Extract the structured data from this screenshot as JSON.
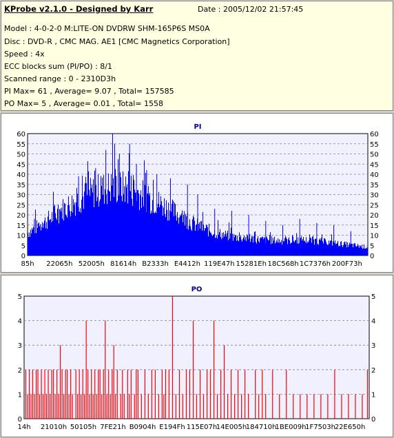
{
  "header": {
    "title": "KProbe v2.1.0 - Designed by Karr",
    "date": "Date : 2005/12/02 21:57:45",
    "lines": [
      "Model : 4-0-2-0 M:LITE-ON DVDRW SHM-165P6S MS0A",
      "Disc : DVD-R , CMC MAG. AE1 [CMC Magnetics Corporation]",
      "Speed : 4x",
      "ECC blocks sum (PI/PO) : 8/1",
      "Scanned range : 0 - 2310D3h",
      "PI Max= 61 , Average= 9.07 , Total= 157585",
      "PO Max= 5 , Average= 0.01 , Total= 1558"
    ]
  },
  "colors": {
    "pi": "#0000ff",
    "po": "#ff0000",
    "grid": "#808080",
    "plot_bg": "#f0f0ff"
  },
  "chart_data": [
    {
      "type": "bar",
      "title": "PI",
      "ylim": [
        0,
        60
      ],
      "yticks": [
        0,
        5,
        10,
        15,
        20,
        25,
        30,
        35,
        40,
        45,
        50,
        55,
        60
      ],
      "xticks": [
        "85h",
        "22065h",
        "52005h",
        "81614h",
        "B2333h",
        "E4412h",
        "119E47h",
        "15281Eh",
        "18C568h",
        "1C7376h",
        "200F73h"
      ],
      "grid": true,
      "envelope": [
        [
          0,
          11
        ],
        [
          0.05,
          16
        ],
        [
          0.1,
          22
        ],
        [
          0.15,
          27
        ],
        [
          0.2,
          31
        ],
        [
          0.25,
          33
        ],
        [
          0.3,
          32
        ],
        [
          0.35,
          28
        ],
        [
          0.4,
          24
        ],
        [
          0.45,
          19
        ],
        [
          0.5,
          14
        ],
        [
          0.55,
          11
        ],
        [
          0.6,
          9
        ],
        [
          0.65,
          8
        ],
        [
          0.7,
          7.5
        ],
        [
          0.75,
          7
        ],
        [
          0.8,
          7.5
        ],
        [
          0.85,
          7
        ],
        [
          0.9,
          6
        ],
        [
          0.95,
          5
        ],
        [
          1,
          4
        ]
      ],
      "peaks": [
        [
          0.02,
          18
        ],
        [
          0.08,
          25
        ],
        [
          0.15,
          39
        ],
        [
          0.2,
          43
        ],
        [
          0.23,
          52
        ],
        [
          0.25,
          61
        ],
        [
          0.27,
          50
        ],
        [
          0.3,
          55
        ],
        [
          0.32,
          45
        ],
        [
          0.35,
          42
        ],
        [
          0.38,
          40
        ],
        [
          0.42,
          38
        ],
        [
          0.47,
          35
        ],
        [
          0.5,
          30
        ],
        [
          0.55,
          23
        ],
        [
          0.6,
          22
        ],
        [
          0.65,
          20
        ],
        [
          0.7,
          17
        ],
        [
          0.75,
          15
        ],
        [
          0.8,
          18
        ],
        [
          0.85,
          16
        ],
        [
          0.9,
          15
        ],
        [
          0.95,
          12
        ]
      ]
    },
    {
      "type": "bar",
      "title": "PO",
      "ylim": [
        0,
        5
      ],
      "yticks": [
        0,
        1,
        2,
        3,
        4,
        5
      ],
      "xticks": [
        "14h",
        "21010h",
        "50105h",
        "7FE21h",
        "B0904h",
        "E194Fh",
        "115E07h",
        "14E005h",
        "184710h",
        "1BE009h",
        "1F7503h",
        "22E650h"
      ],
      "grid": true,
      "points": [
        [
          0.005,
          2
        ],
        [
          0.01,
          1
        ],
        [
          0.015,
          2
        ],
        [
          0.02,
          1
        ],
        [
          0.025,
          2
        ],
        [
          0.03,
          1
        ],
        [
          0.035,
          2
        ],
        [
          0.04,
          2
        ],
        [
          0.045,
          1
        ],
        [
          0.05,
          2
        ],
        [
          0.055,
          1
        ],
        [
          0.06,
          2
        ],
        [
          0.065,
          1
        ],
        [
          0.07,
          2
        ],
        [
          0.075,
          1
        ],
        [
          0.08,
          2
        ],
        [
          0.085,
          2
        ],
        [
          0.09,
          1
        ],
        [
          0.095,
          2
        ],
        [
          0.1,
          1
        ],
        [
          0.105,
          3
        ],
        [
          0.11,
          2
        ],
        [
          0.115,
          1
        ],
        [
          0.12,
          2
        ],
        [
          0.125,
          2
        ],
        [
          0.13,
          1
        ],
        [
          0.135,
          2
        ],
        [
          0.14,
          1
        ],
        [
          0.15,
          2
        ],
        [
          0.155,
          1
        ],
        [
          0.16,
          2
        ],
        [
          0.165,
          1
        ],
        [
          0.17,
          2
        ],
        [
          0.175,
          1
        ],
        [
          0.18,
          4
        ],
        [
          0.185,
          2
        ],
        [
          0.19,
          1
        ],
        [
          0.195,
          2
        ],
        [
          0.2,
          1
        ],
        [
          0.205,
          2
        ],
        [
          0.21,
          1
        ],
        [
          0.215,
          2
        ],
        [
          0.22,
          2
        ],
        [
          0.225,
          1
        ],
        [
          0.23,
          2
        ],
        [
          0.235,
          4
        ],
        [
          0.24,
          1
        ],
        [
          0.245,
          2
        ],
        [
          0.25,
          1
        ],
        [
          0.255,
          2
        ],
        [
          0.26,
          3
        ],
        [
          0.265,
          1
        ],
        [
          0.27,
          2
        ],
        [
          0.28,
          1
        ],
        [
          0.285,
          2
        ],
        [
          0.29,
          1
        ],
        [
          0.3,
          2
        ],
        [
          0.305,
          1
        ],
        [
          0.31,
          2
        ],
        [
          0.32,
          1
        ],
        [
          0.325,
          2
        ],
        [
          0.33,
          2
        ],
        [
          0.34,
          1
        ],
        [
          0.35,
          2
        ],
        [
          0.36,
          1
        ],
        [
          0.37,
          2
        ],
        [
          0.38,
          2
        ],
        [
          0.39,
          1
        ],
        [
          0.4,
          2
        ],
        [
          0.405,
          1
        ],
        [
          0.41,
          2
        ],
        [
          0.42,
          2
        ],
        [
          0.43,
          5
        ],
        [
          0.44,
          1
        ],
        [
          0.45,
          2
        ],
        [
          0.46,
          1
        ],
        [
          0.47,
          2
        ],
        [
          0.48,
          2
        ],
        [
          0.49,
          4
        ],
        [
          0.5,
          1
        ],
        [
          0.51,
          2
        ],
        [
          0.52,
          1
        ],
        [
          0.53,
          2
        ],
        [
          0.54,
          2
        ],
        [
          0.55,
          4
        ],
        [
          0.56,
          1
        ],
        [
          0.57,
          2
        ],
        [
          0.58,
          3
        ],
        [
          0.59,
          1
        ],
        [
          0.6,
          2
        ],
        [
          0.61,
          1
        ],
        [
          0.62,
          2
        ],
        [
          0.63,
          1
        ],
        [
          0.64,
          2
        ],
        [
          0.65,
          1
        ],
        [
          0.67,
          2
        ],
        [
          0.68,
          1
        ],
        [
          0.69,
          2
        ],
        [
          0.7,
          1
        ],
        [
          0.72,
          2
        ],
        [
          0.74,
          1
        ],
        [
          0.76,
          2
        ],
        [
          0.78,
          1
        ],
        [
          0.8,
          1
        ],
        [
          0.82,
          1
        ],
        [
          0.84,
          1
        ],
        [
          0.86,
          1
        ],
        [
          0.88,
          1
        ],
        [
          0.9,
          2
        ],
        [
          0.92,
          1
        ],
        [
          0.94,
          1
        ],
        [
          0.96,
          1
        ],
        [
          0.98,
          1
        ],
        [
          0.995,
          2
        ]
      ]
    }
  ]
}
